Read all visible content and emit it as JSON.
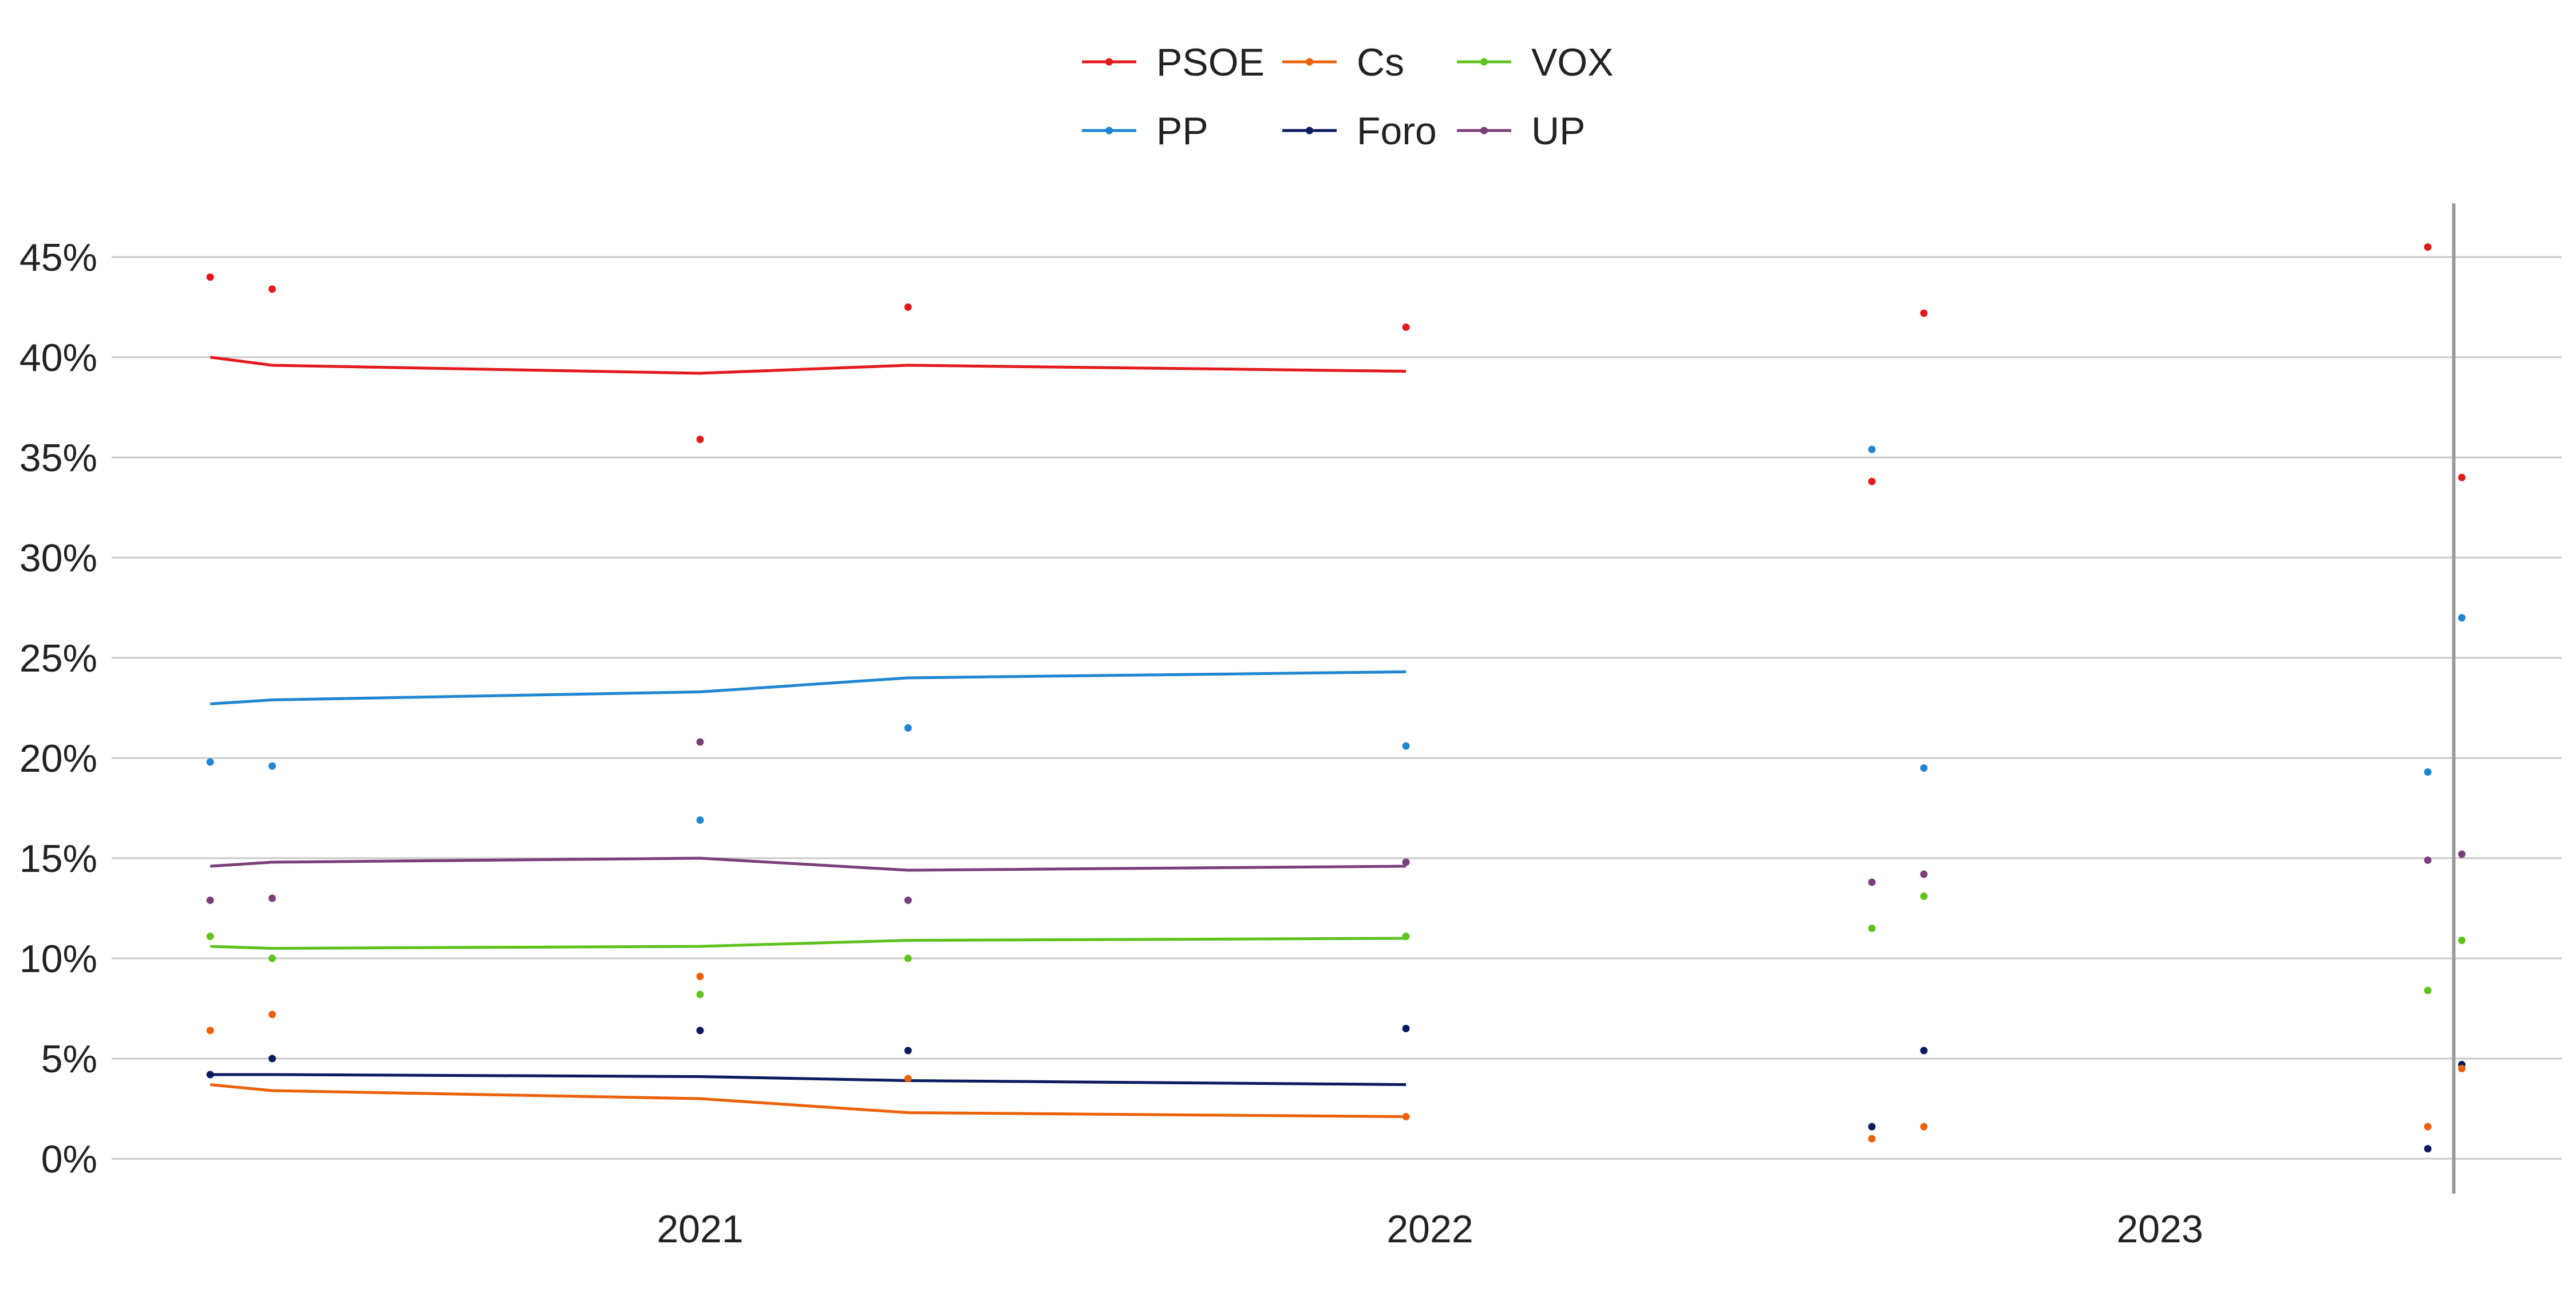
{
  "chart_data": {
    "type": "line",
    "title": "",
    "xlabel": "",
    "ylabel": "",
    "x_ticks": [
      "2021",
      "2022",
      "2023"
    ],
    "y_ticks": [
      "0%",
      "5%",
      "10%",
      "15%",
      "20%",
      "25%",
      "30%",
      "35%",
      "40%",
      "45%"
    ],
    "ylim": [
      0,
      47
    ],
    "xlim": [
      "2020-03-20",
      "2023-08-10"
    ],
    "grid": true,
    "legend_position": "top-center",
    "markers": [
      "2023-05-28"
    ],
    "series": [
      {
        "name": "PSOE",
        "color": "#e31a1c",
        "trend": [
          [
            "2020-05-01",
            40.0
          ],
          [
            "2020-06-01",
            39.6
          ],
          [
            "2021-01-01",
            39.2
          ],
          [
            "2021-04-15",
            39.6
          ],
          [
            "2021-12-20",
            39.3
          ]
        ],
        "points": [
          [
            "2020-05-01",
            44.0
          ],
          [
            "2020-06-01",
            43.4
          ],
          [
            "2021-01-01",
            35.9
          ],
          [
            "2021-04-15",
            42.5
          ],
          [
            "2021-12-20",
            41.5
          ],
          [
            "2022-08-10",
            33.8
          ],
          [
            "2022-09-05",
            42.2
          ],
          [
            "2023-05-15",
            45.5
          ],
          [
            "2023-06-01",
            34.0
          ]
        ]
      },
      {
        "name": "PP",
        "color": "#1f86d1",
        "trend": [
          [
            "2020-05-01",
            22.7
          ],
          [
            "2020-06-01",
            22.9
          ],
          [
            "2021-01-01",
            23.3
          ],
          [
            "2021-04-15",
            24.0
          ],
          [
            "2021-12-20",
            24.3
          ]
        ],
        "points": [
          [
            "2020-05-01",
            19.8
          ],
          [
            "2020-06-01",
            19.6
          ],
          [
            "2021-01-01",
            16.9
          ],
          [
            "2021-04-15",
            21.5
          ],
          [
            "2021-12-20",
            20.6
          ],
          [
            "2022-08-10",
            35.4
          ],
          [
            "2022-09-05",
            19.5
          ],
          [
            "2023-05-15",
            19.3
          ],
          [
            "2023-06-01",
            27.0
          ]
        ]
      },
      {
        "name": "UP",
        "color": "#7b3f7a",
        "trend": [
          [
            "2020-05-01",
            14.6
          ],
          [
            "2020-06-01",
            14.8
          ],
          [
            "2021-01-01",
            15.0
          ],
          [
            "2021-04-15",
            14.4
          ],
          [
            "2021-12-20",
            14.6
          ]
        ],
        "points": [
          [
            "2020-05-01",
            12.9
          ],
          [
            "2020-06-01",
            13.0
          ],
          [
            "2021-01-01",
            20.8
          ],
          [
            "2021-04-15",
            12.9
          ],
          [
            "2021-12-20",
            14.8
          ],
          [
            "2022-08-10",
            13.8
          ],
          [
            "2022-09-05",
            14.2
          ],
          [
            "2023-05-15",
            14.9
          ],
          [
            "2023-06-01",
            15.2
          ]
        ]
      },
      {
        "name": "VOX",
        "color": "#5fc21e",
        "trend": [
          [
            "2020-05-01",
            10.6
          ],
          [
            "2020-06-01",
            10.5
          ],
          [
            "2021-01-01",
            10.6
          ],
          [
            "2021-04-15",
            10.9
          ],
          [
            "2021-12-20",
            11.0
          ]
        ],
        "points": [
          [
            "2020-05-01",
            11.1
          ],
          [
            "2020-06-01",
            10.0
          ],
          [
            "2021-01-01",
            8.2
          ],
          [
            "2021-04-15",
            10.0
          ],
          [
            "2021-12-20",
            11.1
          ],
          [
            "2022-08-10",
            11.5
          ],
          [
            "2022-09-05",
            13.1
          ],
          [
            "2023-05-15",
            8.4
          ],
          [
            "2023-06-01",
            10.9
          ]
        ]
      },
      {
        "name": "Foro",
        "color": "#0d1b5e",
        "trend": [
          [
            "2020-05-01",
            4.2
          ],
          [
            "2020-06-01",
            4.2
          ],
          [
            "2021-01-01",
            4.1
          ],
          [
            "2021-04-15",
            3.9
          ],
          [
            "2021-12-20",
            3.7
          ]
        ],
        "points": [
          [
            "2020-05-01",
            4.2
          ],
          [
            "2020-06-01",
            5.0
          ],
          [
            "2021-01-01",
            6.4
          ],
          [
            "2021-04-15",
            5.4
          ],
          [
            "2021-12-20",
            6.5
          ],
          [
            "2022-08-10",
            1.6
          ],
          [
            "2022-09-05",
            5.4
          ],
          [
            "2023-05-15",
            0.5
          ],
          [
            "2023-06-01",
            4.7
          ]
        ]
      },
      {
        "name": "Cs",
        "color": "#eb6109",
        "trend": [
          [
            "2020-05-01",
            3.7
          ],
          [
            "2020-06-01",
            3.4
          ],
          [
            "2021-01-01",
            3.0
          ],
          [
            "2021-04-15",
            2.3
          ],
          [
            "2021-12-20",
            2.1
          ]
        ],
        "points": [
          [
            "2020-05-01",
            6.4
          ],
          [
            "2020-06-01",
            7.2
          ],
          [
            "2021-01-01",
            9.1
          ],
          [
            "2021-04-15",
            4.0
          ],
          [
            "2021-12-20",
            2.1
          ],
          [
            "2022-08-10",
            1.0
          ],
          [
            "2022-09-05",
            1.6
          ],
          [
            "2023-05-15",
            1.6
          ],
          [
            "2023-06-01",
            4.5
          ]
        ]
      }
    ]
  }
}
